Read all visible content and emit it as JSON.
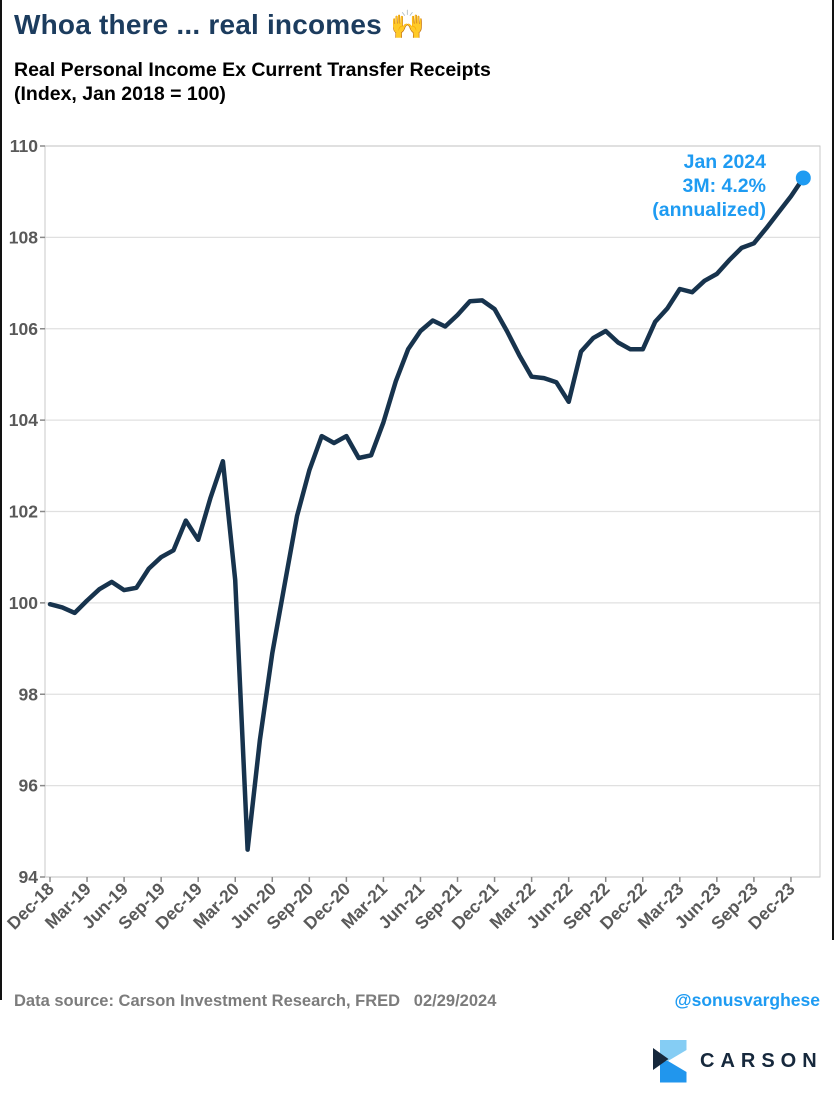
{
  "header": {
    "title": "Whoa there ... real incomes",
    "title_emoji": "🙌",
    "subtitle_line1": "Real Personal Income Ex Current Transfer Receipts",
    "subtitle_line2": "(Index, Jan 2018 = 100)"
  },
  "chart_data": {
    "type": "line",
    "title": "Real Personal Income Ex Current Transfer Receipts (Index, Jan 2018 = 100)",
    "x": [
      "Dec-18",
      "Jan-19",
      "Feb-19",
      "Mar-19",
      "Apr-19",
      "May-19",
      "Jun-19",
      "Jul-19",
      "Aug-19",
      "Sep-19",
      "Oct-19",
      "Nov-19",
      "Dec-19",
      "Jan-20",
      "Feb-20",
      "Mar-20",
      "Apr-20",
      "May-20",
      "Jun-20",
      "Jul-20",
      "Aug-20",
      "Sep-20",
      "Oct-20",
      "Nov-20",
      "Dec-20",
      "Jan-21",
      "Feb-21",
      "Mar-21",
      "Apr-21",
      "May-21",
      "Jun-21",
      "Jul-21",
      "Aug-21",
      "Sep-21",
      "Oct-21",
      "Nov-21",
      "Dec-21",
      "Jan-22",
      "Feb-22",
      "Mar-22",
      "Apr-22",
      "May-22",
      "Jun-22",
      "Jul-22",
      "Aug-22",
      "Sep-22",
      "Oct-22",
      "Nov-22",
      "Dec-22",
      "Jan-23",
      "Feb-23",
      "Mar-23",
      "Apr-23",
      "May-23",
      "Jun-23",
      "Jul-23",
      "Aug-23",
      "Sep-23",
      "Oct-23",
      "Nov-23",
      "Dec-23",
      "Jan-24"
    ],
    "series": [
      {
        "name": "Real Personal Income Ex Current Transfer Receipts",
        "values": [
          99.97,
          99.9,
          99.78,
          100.05,
          100.3,
          100.46,
          100.28,
          100.33,
          100.75,
          101.0,
          101.15,
          101.8,
          101.38,
          102.3,
          103.1,
          100.5,
          94.6,
          97.0,
          98.9,
          100.4,
          101.9,
          102.9,
          103.65,
          103.5,
          103.65,
          103.17,
          103.23,
          103.95,
          104.85,
          105.55,
          105.95,
          106.18,
          106.05,
          106.3,
          106.6,
          106.62,
          106.43,
          105.95,
          105.42,
          104.95,
          104.92,
          104.83,
          104.4,
          105.5,
          105.8,
          105.95,
          105.7,
          105.55,
          105.55,
          106.15,
          106.45,
          106.87,
          106.8,
          107.05,
          107.2,
          107.5,
          107.77,
          107.87,
          108.2,
          108.55,
          108.9,
          109.3
        ]
      }
    ],
    "x_tick_labels": [
      "Dec-18",
      "Mar-19",
      "Jun-19",
      "Sep-19",
      "Dec-19",
      "Mar-20",
      "Jun-20",
      "Sep-20",
      "Dec-20",
      "Mar-21",
      "Jun-21",
      "Sep-21",
      "Dec-21",
      "Mar-22",
      "Jun-22",
      "Sep-22",
      "Dec-22",
      "Mar-23",
      "Jun-23",
      "Sep-23",
      "Dec-23"
    ],
    "y_ticks": [
      94,
      96,
      98,
      100,
      102,
      104,
      106,
      108,
      110
    ],
    "ylim": [
      94,
      110
    ],
    "grid": "horizontal",
    "legend": "none",
    "annotation": {
      "lines": [
        "Jan 2024",
        "3M: 4.2%",
        "(annualized)"
      ],
      "color": "#1e9bf2"
    },
    "endpoint": {
      "x_label": "Jan-24",
      "value": 109.3
    }
  },
  "footer": {
    "datasource": "Data source: Carson Investment Research, FRED   02/29/2024",
    "handle": "@sonusvarghese",
    "logo_text": "CARSON"
  },
  "colors": {
    "line_navy": "#17334d",
    "accent_blue": "#1e9bf2",
    "title_navy": "#1c3c5e",
    "tick_gray": "#595959",
    "footer_gray": "#7c7c7c",
    "grid_gray": "#e0e0e0",
    "plot_border_gray": "#c9c9c9",
    "logo_light_blue": "#85cdf4",
    "logo_bright_blue": "#2196ed",
    "logo_navy": "#16283c"
  }
}
